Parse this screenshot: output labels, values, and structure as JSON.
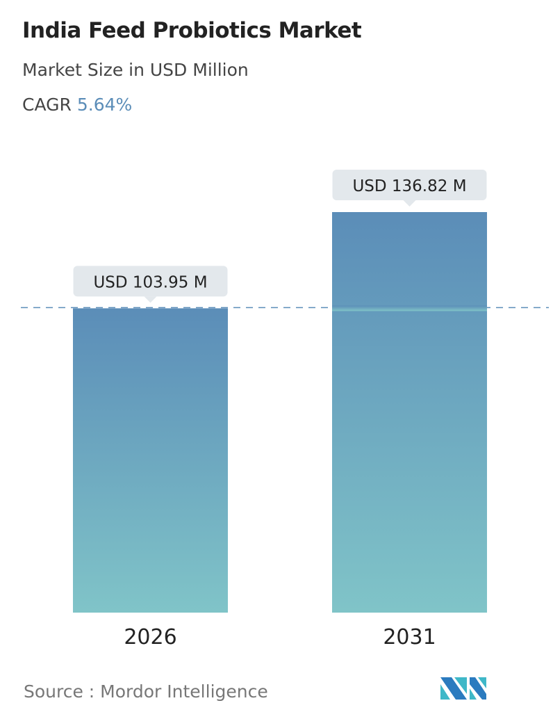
{
  "header": {
    "title": "India Feed Probiotics Market",
    "subtitle": "Market Size in USD Million",
    "cagr_label": "CAGR",
    "cagr_value": "5.64%"
  },
  "chart_data": {
    "type": "bar",
    "categories": [
      "2026",
      "2031"
    ],
    "values": [
      103.95,
      136.82
    ],
    "data_labels": [
      "USD 103.95 M",
      "USD 136.82 M"
    ],
    "ylim": [
      0,
      136.82
    ],
    "grid": false,
    "reference_line": "dashed line at 2026 value",
    "colors": {
      "bar_top": "#5b8db8",
      "bar_bottom": "#80c4c8",
      "label_bg": "#e3e8ec",
      "dash": "#5b8db8"
    }
  },
  "footer": {
    "source": "Source :  Mordor Intelligence"
  }
}
